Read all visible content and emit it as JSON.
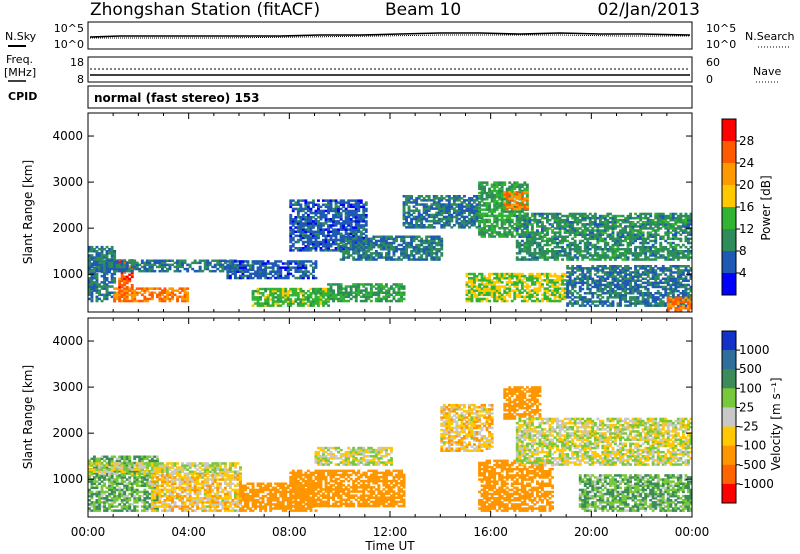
{
  "header": {
    "station": "Zhongshan Station (fitACF)",
    "beam": "Beam 10",
    "date": "02/Jan/2013"
  },
  "strip_panels": {
    "sky_label": "N.Sky",
    "search_label": "N.Search",
    "freq_label_top": "Freq.",
    "freq_label_unit": "[MHz]",
    "nave_label": "Nave",
    "cpid_label": "CPID",
    "cpid_text": "normal (fast stereo) 153",
    "sky_ticks": [
      "10^5",
      "10^0"
    ],
    "search_ticks": [
      "10^5",
      "10^0"
    ],
    "freq_ticks": [
      "18",
      "8"
    ],
    "nave_ticks": [
      "60",
      "0"
    ]
  },
  "colorbars": {
    "power": {
      "label": "Power [dB]",
      "ticks": [
        "28",
        "24",
        "20",
        "16",
        "12",
        "8",
        "4"
      ],
      "colors": [
        "#ff0000",
        "#ff5a00",
        "#ff9900",
        "#ffc800",
        "#32b432",
        "#2d8c5a",
        "#1e5ab4",
        "#0000ff"
      ]
    },
    "velocity": {
      "label": "Velocity [m s⁻¹]",
      "ticks": [
        "1000",
        "500",
        "100",
        "25",
        "-25",
        "-100",
        "-500",
        "-1000"
      ],
      "colors": [
        "#1432c8",
        "#2d6e9a",
        "#3c8c5a",
        "#78c83c",
        "#c8c8c8",
        "#ffc800",
        "#ff9600",
        "#ff6400",
        "#ff0000"
      ]
    }
  },
  "time_axis": {
    "label": "Time UT",
    "ticks": [
      "00:00",
      "04:00",
      "08:00",
      "12:00",
      "16:00",
      "20:00",
      "00:00"
    ]
  },
  "chart_data": [
    {
      "type": "heatmap",
      "title": "Zhongshan Station (fitACF) Beam 10 02/Jan/2013",
      "quantity": "Power",
      "xlabel": "Time UT",
      "ylabel": "Slant Range [km]",
      "ylim": [
        180,
        4500
      ],
      "yticks": [
        "1000",
        "2000",
        "3000",
        "4000"
      ],
      "colorbar_range": [
        0,
        30
      ],
      "regions": [
        {
          "t0": 0.0,
          "t1": 1.0,
          "r0": 400,
          "r1": 1600,
          "value": 8
        },
        {
          "t0": 1.0,
          "t1": 4.0,
          "r0": 400,
          "r1": 700,
          "value": 24
        },
        {
          "t0": 1.2,
          "t1": 1.8,
          "r0": 700,
          "r1": 1300,
          "value": 26
        },
        {
          "t0": 0.0,
          "t1": 6.0,
          "r0": 1050,
          "r1": 1300,
          "value": 8
        },
        {
          "t0": 5.5,
          "t1": 9.0,
          "r0": 900,
          "r1": 1300,
          "value": 6
        },
        {
          "t0": 6.5,
          "t1": 9.5,
          "r0": 300,
          "r1": 700,
          "value": 14
        },
        {
          "t0": 9.5,
          "t1": 12.5,
          "r0": 400,
          "r1": 800,
          "value": 12
        },
        {
          "t0": 8.0,
          "t1": 11.0,
          "r0": 1500,
          "r1": 2600,
          "value": 6
        },
        {
          "t0": 10.0,
          "t1": 14.0,
          "r0": 1300,
          "r1": 1800,
          "value": 8
        },
        {
          "t0": 12.5,
          "t1": 15.5,
          "r0": 2000,
          "r1": 2700,
          "value": 8
        },
        {
          "t0": 15.0,
          "t1": 19.0,
          "r0": 400,
          "r1": 1000,
          "value": 16
        },
        {
          "t0": 15.5,
          "t1": 17.5,
          "r0": 1800,
          "r1": 3000,
          "value": 12
        },
        {
          "t0": 16.5,
          "t1": 17.5,
          "r0": 2400,
          "r1": 2800,
          "value": 24
        },
        {
          "t0": 17.0,
          "t1": 24.0,
          "r0": 1300,
          "r1": 2300,
          "value": 10
        },
        {
          "t0": 19.0,
          "t1": 24.0,
          "r0": 300,
          "r1": 1200,
          "value": 8
        },
        {
          "t0": 23.0,
          "t1": 24.0,
          "r0": 200,
          "r1": 500,
          "value": 24
        }
      ]
    },
    {
      "type": "heatmap",
      "quantity": "Velocity",
      "xlabel": "Time UT",
      "ylabel": "Slant Range [km]",
      "ylim": [
        180,
        4500
      ],
      "yticks": [
        "1000",
        "2000",
        "3000",
        "4000"
      ],
      "colorbar_range": [
        -1000,
        1000
      ],
      "regions": [
        {
          "t0": 0.0,
          "t1": 2.8,
          "r0": 300,
          "r1": 1500,
          "value": 100
        },
        {
          "t0": 0.0,
          "t1": 6.0,
          "r0": 1100,
          "r1": 1350,
          "value": 0
        },
        {
          "t0": 2.5,
          "t1": 6.0,
          "r0": 300,
          "r1": 1100,
          "value": -60
        },
        {
          "t0": 6.0,
          "t1": 9.0,
          "r0": 300,
          "r1": 900,
          "value": -300
        },
        {
          "t0": 8.0,
          "t1": 12.5,
          "r0": 400,
          "r1": 1200,
          "value": -300
        },
        {
          "t0": 9.0,
          "t1": 12.0,
          "r0": 1300,
          "r1": 1700,
          "value": 0
        },
        {
          "t0": 14.0,
          "t1": 16.0,
          "r0": 1600,
          "r1": 2600,
          "value": -60
        },
        {
          "t0": 15.5,
          "t1": 18.5,
          "r0": 300,
          "r1": 1400,
          "value": -300
        },
        {
          "t0": 16.5,
          "t1": 18.0,
          "r0": 2300,
          "r1": 3000,
          "value": -300
        },
        {
          "t0": 17.0,
          "t1": 24.0,
          "r0": 1300,
          "r1": 2300,
          "value": 0
        },
        {
          "t0": 19.5,
          "t1": 24.0,
          "r0": 300,
          "r1": 1100,
          "value": 100
        }
      ]
    }
  ]
}
